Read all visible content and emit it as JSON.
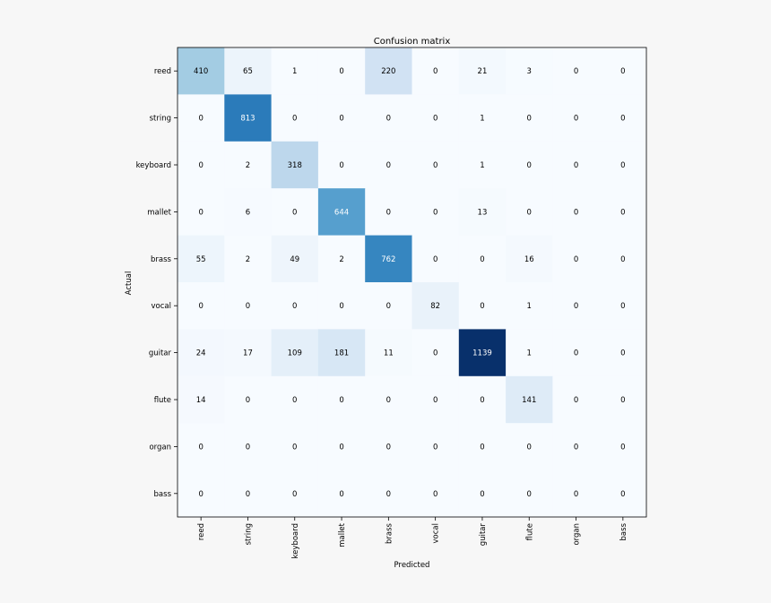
{
  "chart_data": {
    "type": "heatmap",
    "title": "Confusion matrix",
    "xlabel": "Predicted",
    "ylabel": "Actual",
    "x_categories": [
      "reed",
      "string",
      "keyboard",
      "mallet",
      "brass",
      "vocal",
      "guitar",
      "flute",
      "organ",
      "bass"
    ],
    "y_categories": [
      "reed",
      "string",
      "keyboard",
      "mallet",
      "brass",
      "vocal",
      "guitar",
      "flute",
      "organ",
      "bass"
    ],
    "values": [
      [
        410,
        65,
        1,
        0,
        220,
        0,
        21,
        3,
        0,
        0
      ],
      [
        0,
        813,
        0,
        0,
        0,
        0,
        1,
        0,
        0,
        0
      ],
      [
        0,
        2,
        318,
        0,
        0,
        0,
        1,
        0,
        0,
        0
      ],
      [
        0,
        6,
        0,
        644,
        0,
        0,
        13,
        0,
        0,
        0
      ],
      [
        55,
        2,
        49,
        2,
        762,
        0,
        0,
        16,
        0,
        0
      ],
      [
        0,
        0,
        0,
        0,
        0,
        82,
        0,
        1,
        0,
        0
      ],
      [
        24,
        17,
        109,
        181,
        11,
        0,
        1139,
        1,
        0,
        0
      ],
      [
        14,
        0,
        0,
        0,
        0,
        0,
        0,
        141,
        0,
        0
      ],
      [
        0,
        0,
        0,
        0,
        0,
        0,
        0,
        0,
        0,
        0
      ],
      [
        0,
        0,
        0,
        0,
        0,
        0,
        0,
        0,
        0,
        0
      ]
    ],
    "colormap": "Blues",
    "value_range": [
      0,
      1139
    ],
    "grid": false
  }
}
